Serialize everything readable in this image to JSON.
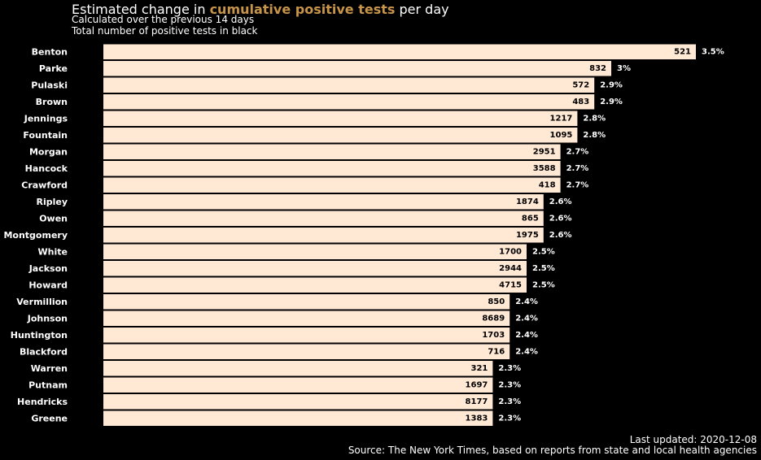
{
  "header": {
    "title_prefix": "Estimated change in ",
    "title_highlight": "cumulative positive tests",
    "title_suffix": " per day",
    "subtitle_1": "Calculated over the previous 14 days",
    "subtitle_2": "Total number of positive tests in black"
  },
  "footer": {
    "updated": "Last updated: 2020-12-08",
    "source": "Source: The New York Times, based on reports from state and local health agencies"
  },
  "colors": {
    "bar": "#ffe8d4",
    "highlight": "#c8944a",
    "background": "#000000"
  },
  "chart_data": {
    "type": "bar",
    "orientation": "horizontal",
    "categories": [
      "Benton",
      "Parke",
      "Pulaski",
      "Brown",
      "Jennings",
      "Fountain",
      "Morgan",
      "Hancock",
      "Crawford",
      "Ripley",
      "Owen",
      "Montgomery",
      "White",
      "Jackson",
      "Howard",
      "Vermillion",
      "Johnson",
      "Huntington",
      "Blackford",
      "Warren",
      "Putnam",
      "Hendricks",
      "Greene"
    ],
    "values": [
      3.5,
      3,
      2.9,
      2.9,
      2.8,
      2.8,
      2.7,
      2.7,
      2.7,
      2.6,
      2.6,
      2.6,
      2.5,
      2.5,
      2.5,
      2.4,
      2.4,
      2.4,
      2.4,
      2.3,
      2.3,
      2.3,
      2.3
    ],
    "value_labels": [
      "3.5%",
      "3%",
      "2.9%",
      "2.9%",
      "2.8%",
      "2.8%",
      "2.7%",
      "2.7%",
      "2.7%",
      "2.6%",
      "2.6%",
      "2.6%",
      "2.5%",
      "2.5%",
      "2.5%",
      "2.4%",
      "2.4%",
      "2.4%",
      "2.4%",
      "2.3%",
      "2.3%",
      "2.3%",
      "2.3%"
    ],
    "total_positive_tests": [
      "521",
      "832",
      "572",
      "483",
      "1217",
      "1095",
      "2951",
      "3588",
      "418",
      "1874",
      "865",
      "1975",
      "1700",
      "2944",
      "4715",
      "850",
      "8689",
      "1703",
      "716",
      "321",
      "1697",
      "8177",
      "1383"
    ],
    "xlim": [
      0,
      3.5
    ],
    "grid": false,
    "legend": "none"
  }
}
